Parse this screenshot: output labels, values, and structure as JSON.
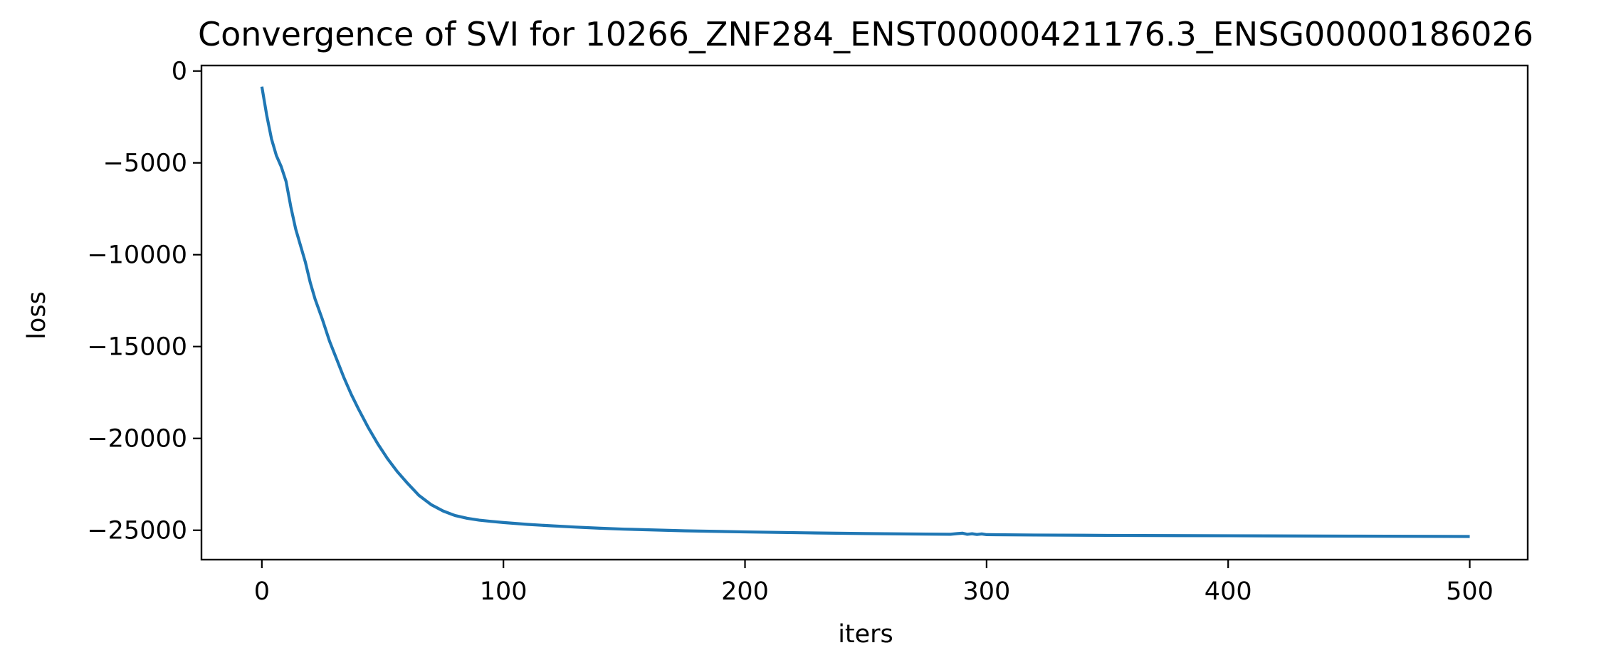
{
  "chart_data": {
    "type": "line",
    "title": "Convergence of SVI for 10266_ZNF284_ENST00000421176.3_ENSG00000186026",
    "xlabel": "iters",
    "ylabel": "loss",
    "xlim": [
      -25,
      524
    ],
    "ylim": [
      -26600,
      300
    ],
    "xticks": [
      0,
      100,
      200,
      300,
      400,
      500
    ],
    "yticks": [
      0,
      -5000,
      -10000,
      -15000,
      -20000,
      -25000
    ],
    "xtick_labels": [
      "0",
      "100",
      "200",
      "300",
      "400",
      "500"
    ],
    "ytick_labels": [
      "0",
      "−5000",
      "−10000",
      "−15000",
      "−20000",
      "−25000"
    ],
    "grid": false,
    "series": [
      {
        "color": "#1f77b4",
        "x": [
          0,
          2,
          4,
          6,
          8,
          10,
          12,
          14,
          16,
          18,
          20,
          22,
          25,
          28,
          31,
          34,
          37,
          40,
          44,
          48,
          52,
          56,
          60,
          65,
          70,
          75,
          80,
          85,
          90,
          95,
          100,
          110,
          120,
          130,
          140,
          150,
          175,
          200,
          225,
          250,
          275,
          285,
          288,
          290,
          292,
          294,
          296,
          298,
          300,
          320,
          350,
          400,
          450,
          500
        ],
        "y": [
          -850,
          -2400,
          -3700,
          -4600,
          -5200,
          -6000,
          -7400,
          -8600,
          -9500,
          -10400,
          -11500,
          -12400,
          -13500,
          -14700,
          -15700,
          -16700,
          -17600,
          -18400,
          -19400,
          -20300,
          -21100,
          -21800,
          -22400,
          -23100,
          -23600,
          -23950,
          -24200,
          -24350,
          -24450,
          -24520,
          -24580,
          -24680,
          -24760,
          -24830,
          -24890,
          -24940,
          -25030,
          -25090,
          -25140,
          -25180,
          -25210,
          -25220,
          -25180,
          -25160,
          -25220,
          -25190,
          -25230,
          -25200,
          -25240,
          -25260,
          -25280,
          -25300,
          -25320,
          -25340
        ]
      }
    ]
  }
}
